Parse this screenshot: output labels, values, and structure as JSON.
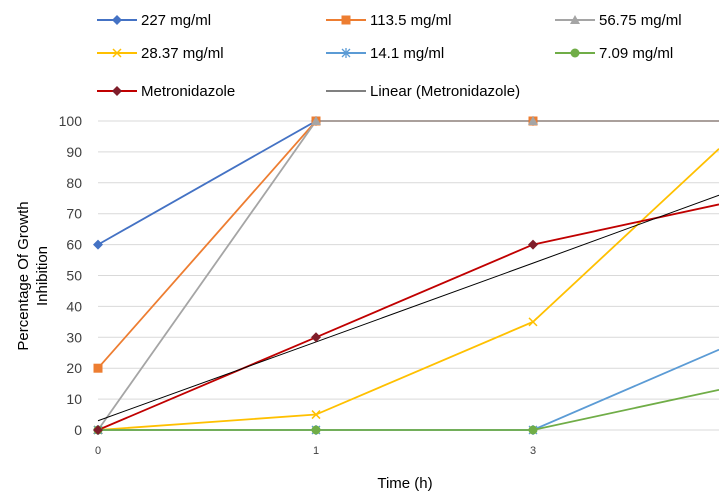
{
  "chart_data": {
    "type": "line",
    "xlabel": "Time (h)",
    "ylabel": [
      "Percentage Of Growth",
      "Inhibition"
    ],
    "categories": [
      "0",
      "1",
      "3",
      ""
    ],
    "ylim": [
      0,
      100
    ],
    "y_ticks": [
      "0",
      "10",
      "20",
      "30",
      "40",
      "50",
      "60",
      "70",
      "80",
      "90",
      "100"
    ],
    "grid": "horizontal",
    "legend_position": "top",
    "series": [
      {
        "name": "227 mg/ml",
        "values": [
          60,
          100,
          100,
          100
        ],
        "color": "#4472C4",
        "marker": "diamond"
      },
      {
        "name": "113.5 mg/ml",
        "values": [
          20,
          100,
          100,
          100
        ],
        "color": "#ED7D31",
        "marker": "square"
      },
      {
        "name": "56.75 mg/ml",
        "values": [
          0,
          100,
          100,
          100
        ],
        "color": "#A5A5A5",
        "marker": "triangle"
      },
      {
        "name": "28.37 mg/ml",
        "values": [
          0,
          5,
          35,
          91
        ],
        "color": "#FFC000",
        "marker": "x"
      },
      {
        "name": "14.1 mg/ml",
        "values": [
          0,
          0,
          0,
          26
        ],
        "color": "#5B9BD5",
        "marker": "star"
      },
      {
        "name": "7.09 mg/ml",
        "values": [
          0,
          0,
          0,
          13
        ],
        "color": "#70AD47",
        "marker": "circle"
      },
      {
        "name": "Metronidazole",
        "values": [
          0,
          30,
          60,
          73
        ],
        "color": "#C00000",
        "marker": "diamond-dark"
      },
      {
        "name": "Linear (Metronidazole)",
        "values": [
          3,
          28.5,
          54,
          76
        ],
        "color": "#000000",
        "marker": "none",
        "trendline": true
      }
    ]
  }
}
